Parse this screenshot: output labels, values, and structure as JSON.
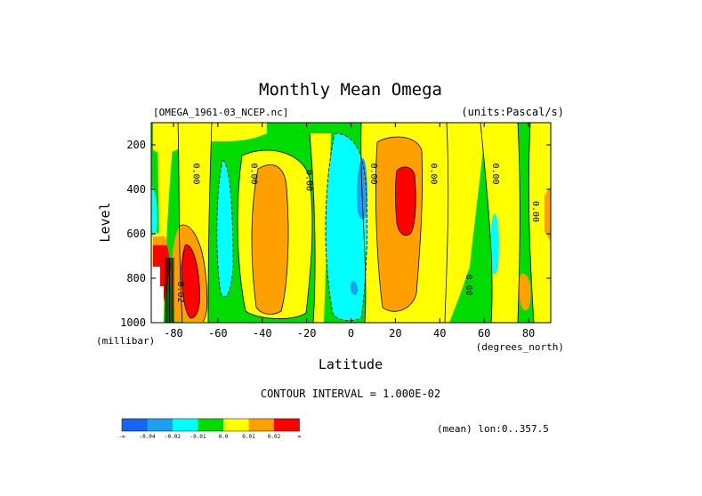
{
  "chart_data": {
    "type": "heatmap",
    "title": "Monthly Mean Omega",
    "source_label": "[OMEGA_1961-03_NCEP.nc]",
    "units_label": "(units:Pascal/s)",
    "ylabel": "Level",
    "yunits": "(millibar)",
    "xlabel": "Latitude",
    "xunits": "(degrees_north)",
    "xlim": [
      -90,
      90
    ],
    "ylim": [
      1000,
      100
    ],
    "x_ticks": [
      -80,
      -60,
      -40,
      -20,
      0,
      20,
      40,
      60,
      80
    ],
    "y_ticks": [
      200,
      400,
      600,
      800,
      1000
    ],
    "contour_interval_text": "CONTOUR INTERVAL = 1.000E-02",
    "mean_note": "(mean) lon:0..357.5",
    "contour_labels": [
      {
        "text": "0.00",
        "lat": -71,
        "p": 330
      },
      {
        "text": "0.00",
        "lat": -45,
        "p": 330
      },
      {
        "text": "0.00",
        "lat": -20,
        "p": 360
      },
      {
        "text": "0.00",
        "lat": 9,
        "p": 330
      },
      {
        "text": "0.00",
        "lat": 36,
        "p": 330
      },
      {
        "text": "0.00",
        "lat": 64,
        "p": 330
      },
      {
        "text": "0.00",
        "lat": 82,
        "p": 500
      },
      {
        "text": "0.00",
        "lat": 52,
        "p": 830
      },
      {
        "text": "-0.02",
        "lat": -78,
        "p": 850
      }
    ],
    "colorbar": {
      "colors": [
        "#1464f5",
        "#1ea0f0",
        "#00ffff",
        "#00dc00",
        "#ffff00",
        "#ffa000",
        "#ff0000"
      ],
      "labels": [
        "-∞",
        "-0.04",
        "-0.02",
        "-0.01",
        "0.0",
        "0.01",
        "0.02",
        "∞"
      ]
    },
    "regions": [
      {
        "value": 0.01,
        "lat": -40,
        "p": 550,
        "rlat": 5.5,
        "rp": 370,
        "color": "#ffa000"
      },
      {
        "value": -0.02,
        "lat": -65,
        "p": 400,
        "rlat": 2,
        "rp": 130,
        "color": "#00ffff"
      },
      {
        "value": -0.02,
        "lat": 0,
        "p": 520,
        "rlat": 7,
        "rp": 400,
        "color": "#00ffff"
      },
      {
        "value": -0.04,
        "lat": 6,
        "p": 300,
        "rlat": 1.2,
        "rp": 140,
        "color": "#1ea0f0"
      },
      {
        "value": -0.04,
        "lat": 3,
        "p": 850,
        "rlat": 1.2,
        "rp": 40,
        "color": "#1ea0f0"
      },
      {
        "value": 0.01,
        "lat": 22,
        "p": 580,
        "rlat": 8.5,
        "rp": 420,
        "color": "#ffa000"
      },
      {
        "value": 0.02,
        "lat": 25,
        "p": 420,
        "rlat": 3,
        "rp": 190,
        "color": "#ff0000"
      },
      {
        "value": -0.01,
        "lat": 72,
        "p": 360,
        "rlat": 14,
        "rp": 270,
        "color": "#00dc00"
      },
      {
        "value": -0.02,
        "lat": 63,
        "p": 520,
        "rlat": 1,
        "rp": 100,
        "color": "#00ffff"
      },
      {
        "value": 0.01,
        "lat": 79,
        "p": 850,
        "rlat": 2.5,
        "rp": 150,
        "color": "#ffa000"
      },
      {
        "value": 0.01,
        "lat": -72,
        "p": 760,
        "rlat": 5,
        "rp": 240,
        "color": "#ffa000"
      },
      {
        "value": 0.02,
        "lat": -73,
        "p": 800,
        "rlat": 2.5,
        "rp": 170,
        "color": "#ff0000"
      }
    ]
  }
}
